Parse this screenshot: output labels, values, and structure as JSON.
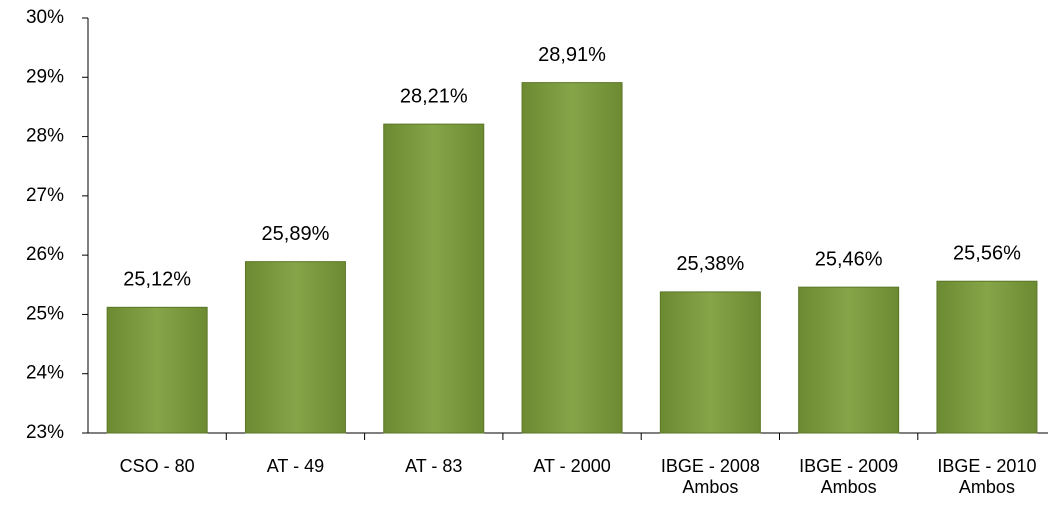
{
  "chart_data": {
    "type": "bar",
    "categories": [
      "CSO - 80",
      "AT - 49",
      "AT - 83",
      "AT - 2000",
      "IBGE - 2008\nAmbos",
      "IBGE - 2009\nAmbos",
      "IBGE - 2010\nAmbos"
    ],
    "values": [
      25.12,
      25.89,
      28.21,
      28.91,
      25.38,
      25.46,
      25.56
    ],
    "value_labels": [
      "25,12%",
      "25,89%",
      "28,21%",
      "28,91%",
      "25,38%",
      "25,46%",
      "25,56%"
    ],
    "color": "#7a9a3e",
    "ylim": [
      23,
      30
    ],
    "yticks": [
      {
        "value": 23,
        "label": "23%"
      },
      {
        "value": 24,
        "label": "24%"
      },
      {
        "value": 25,
        "label": "25%"
      },
      {
        "value": 26,
        "label": "26%"
      },
      {
        "value": 27,
        "label": "27%"
      },
      {
        "value": 28,
        "label": "28%"
      },
      {
        "value": 29,
        "label": "29%"
      },
      {
        "value": 30,
        "label": "30%"
      }
    ],
    "grid": false
  }
}
